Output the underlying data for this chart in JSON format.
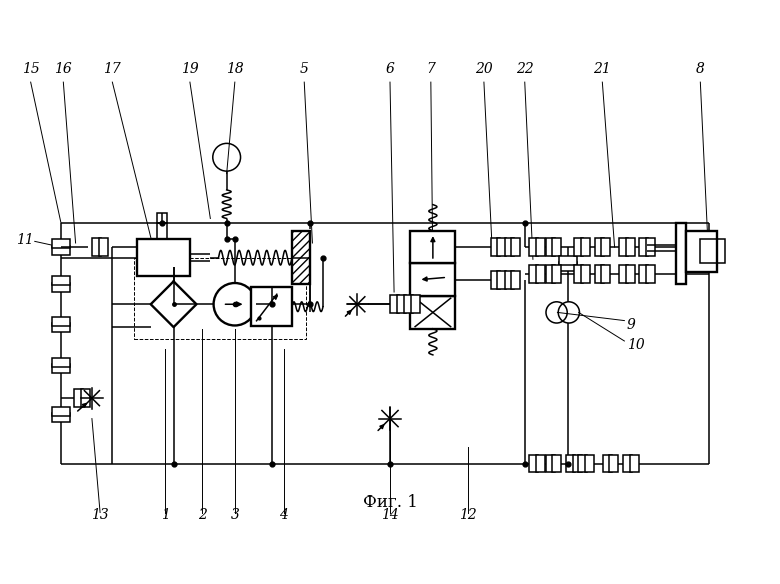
{
  "title": "Фиг. 1",
  "title_fontsize": 12,
  "fig_width": 7.8,
  "fig_height": 5.84,
  "dpi": 100,
  "bg_color": "#ffffff",
  "lc": "#000000",
  "lw": 1.1,
  "lw2": 1.7,
  "lw3": 0.7,
  "top_labels": [
    "15",
    "16",
    "17",
    "19",
    "18",
    "5",
    "6",
    "7",
    "20",
    "22",
    "21",
    "8"
  ],
  "top_lx": [
    0.35,
    0.75,
    1.35,
    2.3,
    2.85,
    3.7,
    4.75,
    5.25,
    5.9,
    6.4,
    7.35,
    8.55
  ],
  "top_ex": [
    0.72,
    0.9,
    1.85,
    2.55,
    2.75,
    3.8,
    4.8,
    5.27,
    6.0,
    6.5,
    7.5,
    8.65
  ],
  "top_ey": [
    3.85,
    3.6,
    3.55,
    3.9,
    4.45,
    3.6,
    3.0,
    3.75,
    3.55,
    3.4,
    3.55,
    3.45
  ],
  "bot_labels": [
    "13",
    "1",
    "2",
    "3",
    "4",
    "14",
    "12"
  ],
  "bot_lx": [
    1.2,
    2.0,
    2.45,
    2.85,
    3.45,
    4.75,
    5.7
  ],
  "bot_ex": [
    1.1,
    2.0,
    2.45,
    2.85,
    3.45,
    4.75,
    5.7
  ],
  "bot_ey": [
    1.45,
    2.3,
    2.55,
    2.55,
    2.3,
    1.45,
    1.1
  ]
}
